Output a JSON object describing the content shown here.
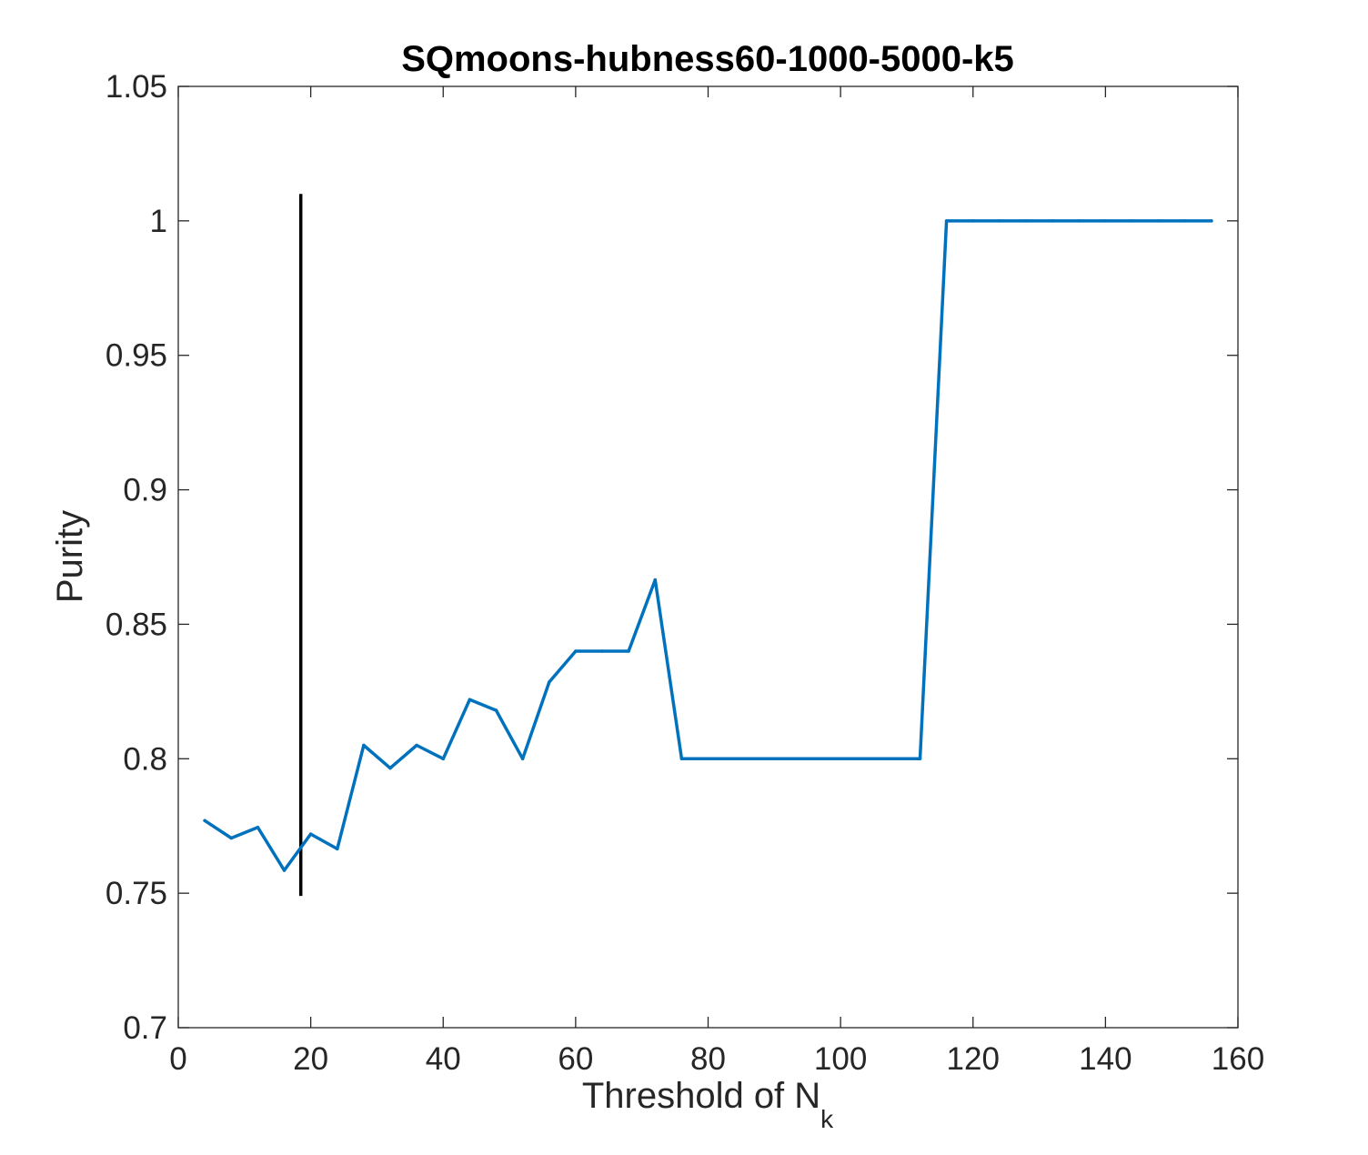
{
  "chart_data": {
    "type": "line",
    "title": "SQmoons-hubness60-1000-5000-k5",
    "xlabel": {
      "main": "Threshold of N",
      "subscript": "k"
    },
    "ylabel": "Purity",
    "xlim": [
      0,
      160
    ],
    "ylim": [
      0.7,
      1.05
    ],
    "x_ticks": [
      0,
      20,
      40,
      60,
      80,
      100,
      120,
      140,
      160
    ],
    "x_tick_labels": [
      "0",
      "20",
      "40",
      "60",
      "80",
      "100",
      "120",
      "140",
      "160"
    ],
    "y_ticks": [
      0.7,
      0.75,
      0.8,
      0.85,
      0.9,
      0.95,
      1,
      1.05
    ],
    "y_tick_labels": [
      "0.7",
      "0.75",
      "0.8",
      "0.85",
      "0.9",
      "0.95",
      "1",
      "1.05"
    ],
    "grid": false,
    "series": [
      {
        "color": "#0072BD",
        "x": [
          4,
          8,
          12,
          16,
          20,
          24,
          28,
          32,
          36,
          40,
          44,
          48,
          52,
          56,
          60,
          64,
          68,
          72,
          76,
          80,
          84,
          88,
          92,
          96,
          100,
          104,
          108,
          112,
          116,
          120,
          124,
          128,
          132,
          136,
          140,
          144,
          148,
          152,
          156
        ],
        "y": [
          0.777,
          0.7705,
          0.7745,
          0.7585,
          0.772,
          0.7665,
          0.805,
          0.7965,
          0.805,
          0.8,
          0.822,
          0.818,
          0.8,
          0.8285,
          0.84,
          0.84,
          0.84,
          0.8665,
          0.8,
          0.8,
          0.8,
          0.8,
          0.8,
          0.8,
          0.8,
          0.8,
          0.8,
          0.8,
          1,
          1,
          1,
          1,
          1,
          1,
          1,
          1,
          1,
          1,
          1
        ]
      }
    ],
    "reference_line": {
      "orientation": "vertical",
      "color": "#000000",
      "x": 18.5,
      "y": [
        0.749,
        1.01
      ]
    }
  }
}
